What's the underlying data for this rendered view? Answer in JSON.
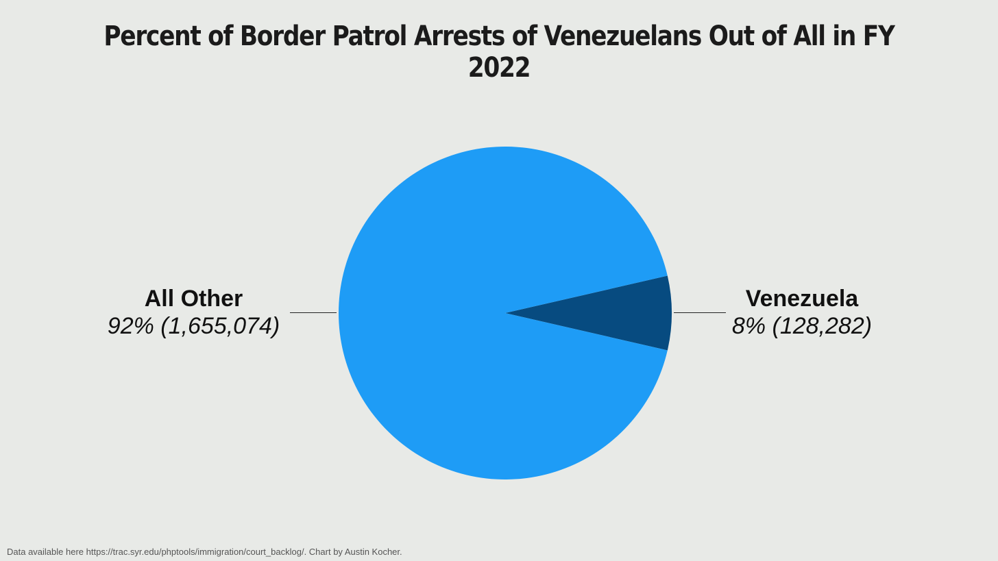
{
  "chart_data": {
    "type": "pie",
    "title": "Percent of Border Patrol Arrests of Venezuelans Out of All in FY 2022",
    "slices": [
      {
        "label": "All Other",
        "value": 1655074,
        "display": "92% (1,655,074)",
        "color": "#1e9cf6"
      },
      {
        "label": "Venezuela",
        "value": 128282,
        "display": "8% (128,282)",
        "color": "#074b80"
      }
    ]
  },
  "footer": {
    "note": "Data available here https://trac.syr.edu/phptools/immigration/court_backlog/. Chart by Austin Kocher."
  },
  "colors": {
    "background": "#e8eae7",
    "text": "#1b1b1b"
  }
}
